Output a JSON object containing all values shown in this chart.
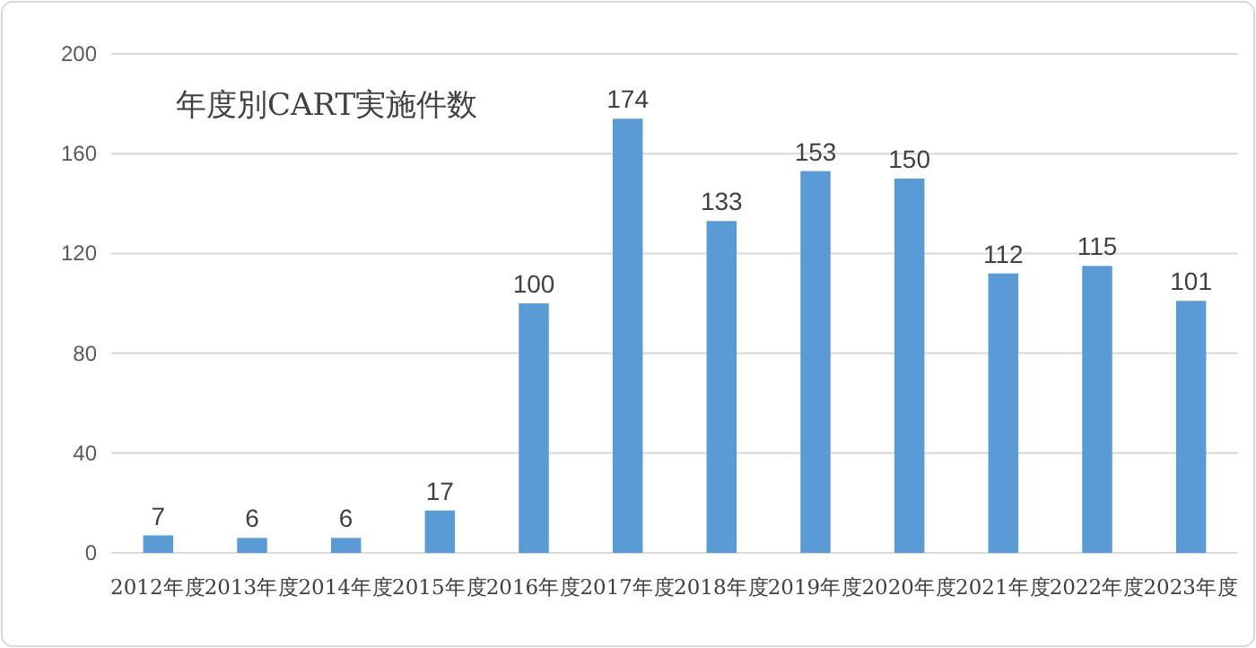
{
  "chart_data": {
    "type": "bar",
    "title": "年度別CART実施件数",
    "categories": [
      "2012年度",
      "2013年度",
      "2014年度",
      "2015年度",
      "2016年度",
      "2017年度",
      "2018年度",
      "2019年度",
      "2020年度",
      "2021年度",
      "2022年度",
      "2023年度"
    ],
    "values": [
      7,
      6,
      6,
      17,
      100,
      174,
      133,
      153,
      150,
      112,
      115,
      101
    ],
    "color": "#5b9bd5",
    "ylim": [
      0,
      200
    ],
    "yticks": [
      0,
      40,
      80,
      120,
      160,
      200
    ],
    "grid": "y",
    "data_labels": true
  }
}
